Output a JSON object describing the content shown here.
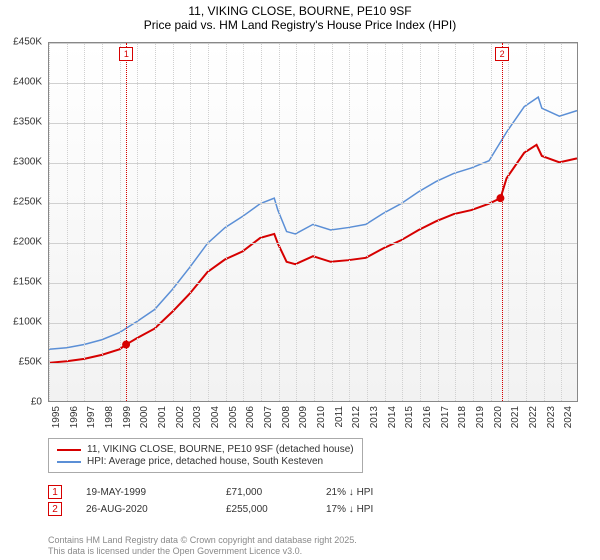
{
  "title": {
    "line1": "11, VIKING CLOSE, BOURNE, PE10 9SF",
    "line2": "Price paid vs. HM Land Registry's House Price Index (HPI)",
    "fontsize": 12
  },
  "chart": {
    "type": "line",
    "background_gradient_top": "#ffffff",
    "background_gradient_bottom": "#f2f2f2",
    "grid_color": "#d0d0d0",
    "border_color": "#888888",
    "ylim": [
      0,
      450000
    ],
    "ytick_step": 50000,
    "y_tick_labels": [
      "£0",
      "£50K",
      "£100K",
      "£150K",
      "£200K",
      "£250K",
      "£300K",
      "£350K",
      "£400K",
      "£450K"
    ],
    "xlim": [
      1995,
      2025
    ],
    "x_tick_labels": [
      "1995",
      "1996",
      "1997",
      "1998",
      "1999",
      "2000",
      "2001",
      "2002",
      "2003",
      "2004",
      "2005",
      "2006",
      "2007",
      "2008",
      "2009",
      "2010",
      "2011",
      "2012",
      "2013",
      "2014",
      "2015",
      "2016",
      "2017",
      "2018",
      "2019",
      "2020",
      "2021",
      "2022",
      "2023",
      "2024"
    ],
    "axis_label_fontsize": 10,
    "series": [
      {
        "name": "price_paid",
        "label": "11, VIKING CLOSE, BOURNE, PE10 9SF (detached house)",
        "color": "#d60000",
        "line_width": 2,
        "data": [
          [
            1995,
            48000
          ],
          [
            1996,
            50000
          ],
          [
            1997,
            53000
          ],
          [
            1998,
            58000
          ],
          [
            1999,
            65000
          ],
          [
            1999.38,
            71000
          ],
          [
            2000,
            79000
          ],
          [
            2001,
            91000
          ],
          [
            2002,
            112000
          ],
          [
            2003,
            135000
          ],
          [
            2004,
            162000
          ],
          [
            2005,
            178000
          ],
          [
            2006,
            188000
          ],
          [
            2007,
            205000
          ],
          [
            2007.8,
            210000
          ],
          [
            2008,
            198000
          ],
          [
            2008.5,
            175000
          ],
          [
            2009,
            172000
          ],
          [
            2010,
            182000
          ],
          [
            2011,
            175000
          ],
          [
            2012,
            177000
          ],
          [
            2013,
            180000
          ],
          [
            2014,
            192000
          ],
          [
            2015,
            202000
          ],
          [
            2016,
            215000
          ],
          [
            2017,
            226000
          ],
          [
            2018,
            235000
          ],
          [
            2019,
            240000
          ],
          [
            2020,
            248000
          ],
          [
            2020.65,
            255000
          ],
          [
            2021,
            280000
          ],
          [
            2022,
            312000
          ],
          [
            2022.7,
            322000
          ],
          [
            2023,
            308000
          ],
          [
            2024,
            300000
          ],
          [
            2025,
            305000
          ]
        ]
      },
      {
        "name": "hpi",
        "label": "HPI: Average price, detached house, South Kesteven",
        "color": "#5b8fd6",
        "line_width": 1.5,
        "data": [
          [
            1995,
            65000
          ],
          [
            1996,
            67000
          ],
          [
            1997,
            71000
          ],
          [
            1998,
            77000
          ],
          [
            1999,
            86000
          ],
          [
            2000,
            100000
          ],
          [
            2001,
            115000
          ],
          [
            2002,
            140000
          ],
          [
            2003,
            168000
          ],
          [
            2004,
            198000
          ],
          [
            2005,
            218000
          ],
          [
            2006,
            232000
          ],
          [
            2007,
            248000
          ],
          [
            2007.8,
            255000
          ],
          [
            2008,
            240000
          ],
          [
            2008.5,
            213000
          ],
          [
            2009,
            210000
          ],
          [
            2010,
            222000
          ],
          [
            2011,
            215000
          ],
          [
            2012,
            218000
          ],
          [
            2013,
            222000
          ],
          [
            2014,
            236000
          ],
          [
            2015,
            248000
          ],
          [
            2016,
            263000
          ],
          [
            2017,
            276000
          ],
          [
            2018,
            286000
          ],
          [
            2019,
            293000
          ],
          [
            2020,
            302000
          ],
          [
            2021,
            338000
          ],
          [
            2022,
            370000
          ],
          [
            2022.8,
            382000
          ],
          [
            2023,
            368000
          ],
          [
            2024,
            358000
          ],
          [
            2025,
            365000
          ]
        ]
      }
    ],
    "sale_markers": [
      {
        "n": "1",
        "x": 1999.38,
        "y": 71000
      },
      {
        "n": "2",
        "x": 2020.65,
        "y": 255000
      }
    ]
  },
  "legend": {
    "items": [
      {
        "color": "#d60000",
        "label": "11, VIKING CLOSE, BOURNE, PE10 9SF (detached house)"
      },
      {
        "color": "#5b8fd6",
        "label": "HPI: Average price, detached house, South Kesteven"
      }
    ]
  },
  "sales": [
    {
      "n": "1",
      "date": "19-MAY-1999",
      "price": "£71,000",
      "delta": "21% ↓ HPI"
    },
    {
      "n": "2",
      "date": "26-AUG-2020",
      "price": "£255,000",
      "delta": "17% ↓ HPI"
    }
  ],
  "footer": {
    "line1": "Contains HM Land Registry data © Crown copyright and database right 2025.",
    "line2": "This data is licensed under the Open Government Licence v3.0."
  }
}
